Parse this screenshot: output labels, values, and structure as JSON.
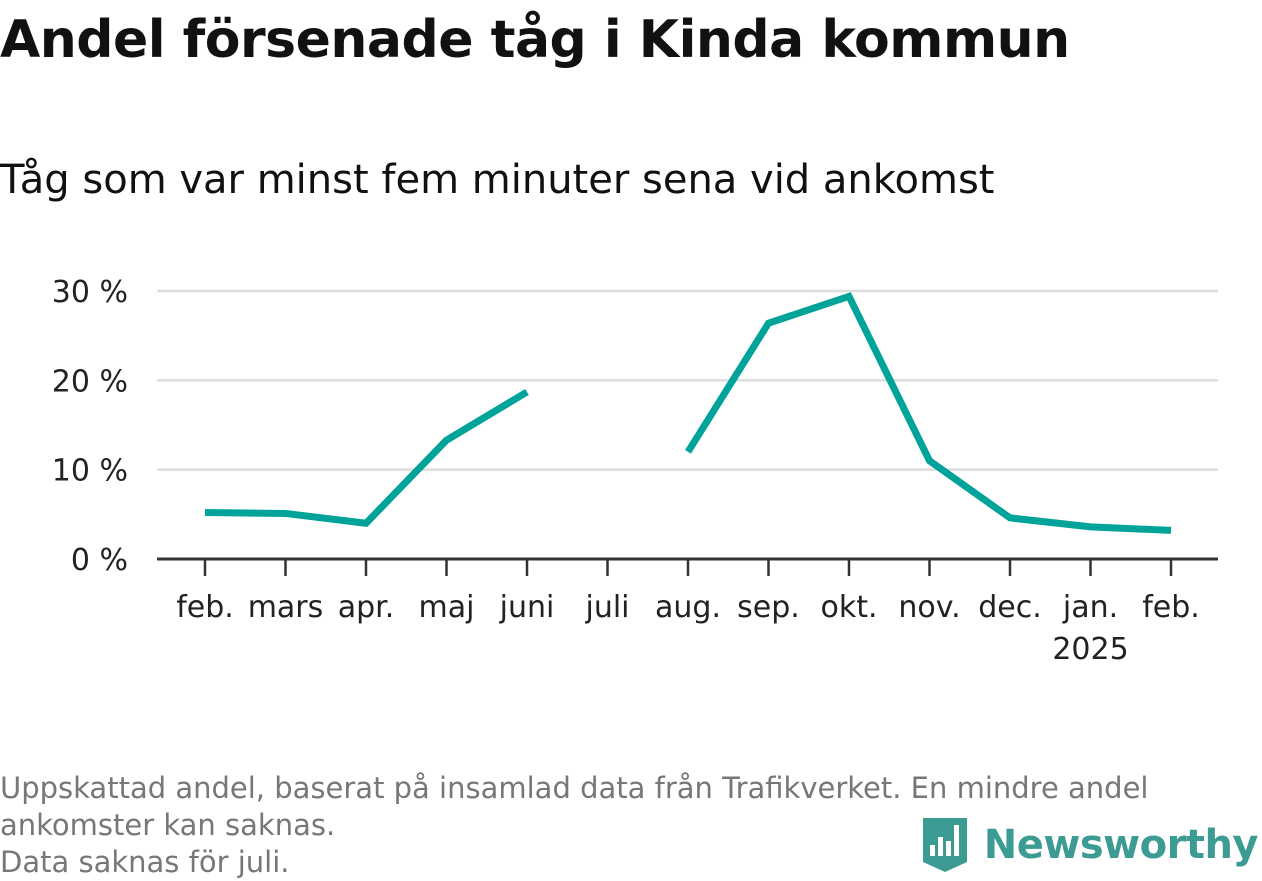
{
  "title": "Andel försenade tåg i Kinda kommun",
  "subtitle": "Tåg som var minst fem minuter sena vid ankomst",
  "footnote": {
    "line1": "Uppskattad andel, baserat på insamlad data från Trafikverket. En mindre andel",
    "line2": "ankomster kan saknas.",
    "line3": "Data saknas för juli."
  },
  "brand": {
    "name": "Newsworthy",
    "icon": "newsworthy-logo-icon",
    "color": "#3c9b92"
  },
  "chart_data": {
    "type": "line",
    "title": "Andel försenade tåg i Kinda kommun",
    "subtitle": "Tåg som var minst fem minuter sena vid ankomst",
    "categories": [
      "feb.",
      "mars",
      "apr.",
      "maj",
      "juni",
      "juli",
      "aug.",
      "sep.",
      "okt.",
      "nov.",
      "dec.",
      "jan.",
      "feb."
    ],
    "category_sublabels": [
      "",
      "",
      "",
      "",
      "",
      "",
      "",
      "",
      "",
      "",
      "",
      "2025",
      ""
    ],
    "series": [
      {
        "values": [
          5.2,
          5.1,
          4.0,
          13.3,
          18.7,
          null,
          12.0,
          26.4,
          29.4,
          11.0,
          4.6,
          3.6,
          3.2
        ],
        "color": "#00a39a"
      }
    ],
    "y_ticks": [
      0,
      10,
      20,
      30
    ],
    "y_tick_labels": [
      "0 %",
      "10 %",
      "20 %",
      "30 %"
    ],
    "ylim": [
      0,
      30
    ],
    "grid": true,
    "legend": "none",
    "xlabel": "",
    "ylabel": ""
  }
}
